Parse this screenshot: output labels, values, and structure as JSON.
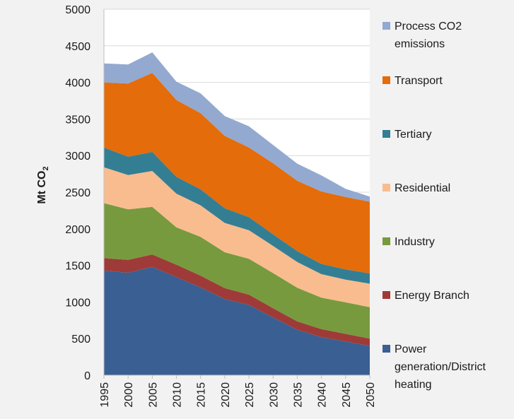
{
  "chart_data": {
    "type": "area",
    "stacked": true,
    "title": "",
    "xlabel": "",
    "ylabel": "Mt CO",
    "ylabel_subscript": "2",
    "ylim": [
      0,
      5000
    ],
    "yticks": [
      0,
      500,
      1000,
      1500,
      2000,
      2500,
      3000,
      3500,
      4000,
      4500,
      5000
    ],
    "grid": true,
    "legend_position": "right",
    "x": [
      1995,
      2000,
      2005,
      2010,
      2015,
      2020,
      2025,
      2030,
      2035,
      2040,
      2045,
      2050
    ],
    "series": [
      {
        "name": "Power generation/District heating",
        "legend_lines": [
          "Power",
          "generation/District",
          "heating"
        ],
        "color": "#3a5f93",
        "values": [
          1430,
          1400,
          1480,
          1340,
          1200,
          1040,
          960,
          790,
          620,
          520,
          460,
          400
        ]
      },
      {
        "name": "Energy Branch",
        "legend_lines": [
          "Energy Branch"
        ],
        "color": "#9e3b38",
        "values": [
          170,
          175,
          170,
          170,
          160,
          150,
          140,
          125,
          115,
          110,
          105,
          100
        ]
      },
      {
        "name": "Industry",
        "legend_lines": [
          "Industry"
        ],
        "color": "#779a3e",
        "values": [
          750,
          690,
          650,
          510,
          530,
          490,
          490,
          480,
          460,
          430,
          430,
          430
        ]
      },
      {
        "name": "Residential",
        "legend_lines": [
          "Residential"
        ],
        "color": "#f9bc8f",
        "values": [
          490,
          470,
          490,
          460,
          430,
          400,
          390,
          370,
          350,
          320,
          310,
          320
        ]
      },
      {
        "name": "Tertiary",
        "legend_lines": [
          "Tertiary"
        ],
        "color": "#347e94",
        "values": [
          270,
          250,
          260,
          230,
          220,
          200,
          180,
          160,
          150,
          140,
          140,
          140
        ]
      },
      {
        "name": "Transport",
        "legend_lines": [
          "Transport"
        ],
        "color": "#e46c0a",
        "values": [
          890,
          1000,
          1080,
          1050,
          1040,
          990,
          950,
          970,
          960,
          990,
          990,
          980
        ]
      },
      {
        "name": "Process CO2 emissions",
        "legend_lines": [
          "Process CO2",
          "emissions"
        ],
        "color": "#93a9d0",
        "values": [
          260,
          260,
          280,
          250,
          270,
          270,
          290,
          250,
          235,
          220,
          110,
          70
        ]
      }
    ]
  }
}
